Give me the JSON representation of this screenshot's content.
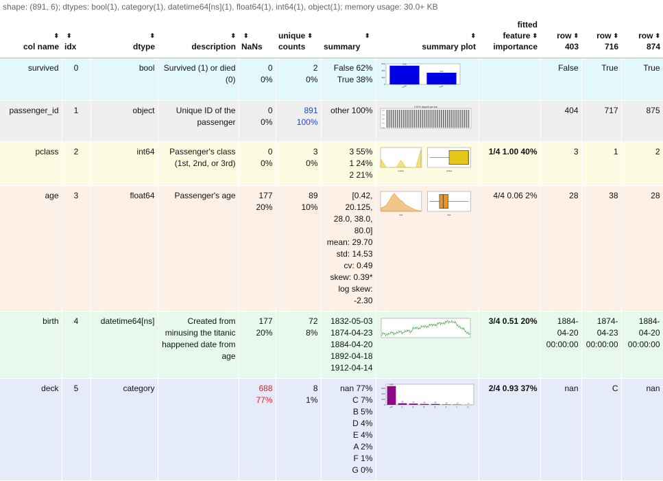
{
  "shape_line": "shape: (891, 6); dtypes: bool(1), category(1), datetime64[ns](1), float64(1), int64(1), object(1); memory usage: 30.0+ KB",
  "sort_glyph": "⬍",
  "headers": {
    "col_name": "col name",
    "idx": "idx",
    "dtype": "dtype",
    "description": "description",
    "nans": "NaNs",
    "unique_1": "unique",
    "unique_2": "counts",
    "summary": "summary",
    "summary_plot": "summary plot",
    "fitted_1": "fitted",
    "fitted_2": "feature",
    "fitted_3": "importance",
    "row403_1": "row",
    "row403_2": "403",
    "row716_1": "row",
    "row716_2": "716",
    "row874_1": "row",
    "row874_2": "874"
  },
  "rows": {
    "survived": {
      "name": "survived",
      "idx": "0",
      "dtype": "bool",
      "desc": [
        "Survived (1) or died",
        "(0)"
      ],
      "nans": [
        "0",
        "0%"
      ],
      "unique": [
        "2",
        "0%"
      ],
      "summary": [
        "False 62%",
        "True 38%"
      ],
      "importance": {
        "rank": "",
        "value": ""
      },
      "r403": "False",
      "r716": "True",
      "r874": "True",
      "plot": {
        "kind": "bar",
        "color": "#0000e6",
        "labels": [
          "False",
          "True"
        ],
        "values": [
          549,
          342
        ],
        "bar_labels": [
          "549",
          "342"
        ],
        "yticks": [
          "0",
          "200",
          "400",
          "600"
        ]
      }
    },
    "passenger_id": {
      "name": "passenger_id",
      "idx": "1",
      "dtype": "object",
      "desc": [
        "Unique ID of the",
        "passenger"
      ],
      "nans": [
        "0",
        "0%"
      ],
      "unique": [
        "891",
        "100%"
      ],
      "summary": [
        "other 100%"
      ],
      "importance": {
        "rank": "",
        "value": ""
      },
      "r403": "404",
      "r716": "717",
      "r874": "875",
      "plot": {
        "kind": "manybars",
        "color": "#777777",
        "title": "2.51% clipped per bar",
        "count": 40
      }
    },
    "pclass": {
      "name": "pclass",
      "idx": "2",
      "dtype": "int64",
      "desc": [
        "Passenger's class",
        "(1st, 2nd, or 3rd)"
      ],
      "nans": [
        "0",
        "0%"
      ],
      "unique": [
        "3",
        "0%"
      ],
      "summary": [
        "3 55%",
        "1 24%",
        "2 21%"
      ],
      "importance": {
        "rank": "1/4",
        "value": "1.00 40%",
        "bold_all": true
      },
      "r403": "3",
      "r716": "1",
      "r874": "2",
      "plot": {
        "kind": "hist_box",
        "color": "#e6c619",
        "xlabel": "pclass",
        "hist": [
          0.45,
          0,
          0,
          0,
          0.4,
          0,
          0,
          0,
          1
        ],
        "box": {
          "min": 1,
          "q1": 2,
          "med": 3,
          "q3": 3,
          "max": 3,
          "lo": 1,
          "hi": 3
        }
      }
    },
    "age": {
      "name": "age",
      "idx": "3",
      "dtype": "float64",
      "desc": [
        "Passenger's age"
      ],
      "nans": [
        "177",
        "20%"
      ],
      "unique": [
        "89",
        "10%"
      ],
      "summary": [
        "[0.42,",
        "20.125,",
        "28.0, 38.0,",
        "80.0]",
        "mean: 29.70",
        "std: 14.53",
        "cv: 0.49",
        "skew: 0.39*",
        "log skew:",
        "-2.30"
      ],
      "importance": {
        "rank": "4/4",
        "value": "0.06 2%",
        "bold_all": false
      },
      "r403": "28",
      "r716": "38",
      "r874": "28",
      "plot": {
        "kind": "hist_box",
        "color": "#e8962a",
        "xlabel": "age",
        "hist": [
          0.2,
          0.25,
          0.35,
          0.6,
          0.85,
          1,
          0.8,
          0.65,
          0.55,
          0.4,
          0.3,
          0.22,
          0.15,
          0.08,
          0.05,
          0.03
        ],
        "box": {
          "min": 0.42,
          "q1": 20.125,
          "med": 28,
          "q3": 38,
          "max": 80,
          "lo": 0,
          "hi": 80
        }
      }
    },
    "birth": {
      "name": "birth",
      "idx": "4",
      "dtype": "datetime64[ns]",
      "desc": [
        "Created from",
        "minusing the titanic",
        "happened date from",
        "age"
      ],
      "nans": [
        "177",
        "20%"
      ],
      "unique": [
        "72",
        "8%"
      ],
      "summary": [
        "1832-05-03",
        "1874-04-23",
        "1884-04-20",
        "1892-04-18",
        "1912-04-14"
      ],
      "importance": {
        "rank": "3/4",
        "value": "0.51 20%",
        "bold_all": true
      },
      "r403": [
        "1884-",
        "04-20",
        "00:00:00"
      ],
      "r716": [
        "1874-",
        "04-23",
        "00:00:00"
      ],
      "r874": [
        "1884-",
        "04-20",
        "00:00:00"
      ],
      "plot": {
        "kind": "line",
        "color": "#2a9a2a"
      }
    },
    "deck": {
      "name": "deck",
      "idx": "5",
      "dtype": "category",
      "desc": [
        ""
      ],
      "nans": [
        "688",
        "77%"
      ],
      "unique": [
        "8",
        "1%"
      ],
      "summary": [
        "nan 77%",
        "C 7%",
        "B 5%",
        "D 4%",
        "E 4%",
        "A 2%",
        "F 1%",
        "G 0%"
      ],
      "importance": {
        "rank": "2/4",
        "value": "0.93 37%",
        "bold_all": true
      },
      "r403": "nan",
      "r716": "C",
      "r874": "nan",
      "plot": {
        "kind": "bar",
        "color": "#8a0a8a",
        "labels": [
          "nan",
          "C",
          "B",
          "D",
          "E",
          "A",
          "F",
          "G"
        ],
        "values": [
          688,
          59,
          47,
          33,
          32,
          15,
          13,
          4
        ],
        "bar_labels": [
          "688",
          "59",
          "47",
          "33",
          "32",
          "15",
          "13",
          "4"
        ],
        "yticks": [
          "0",
          "200",
          "400",
          "600"
        ]
      }
    }
  }
}
